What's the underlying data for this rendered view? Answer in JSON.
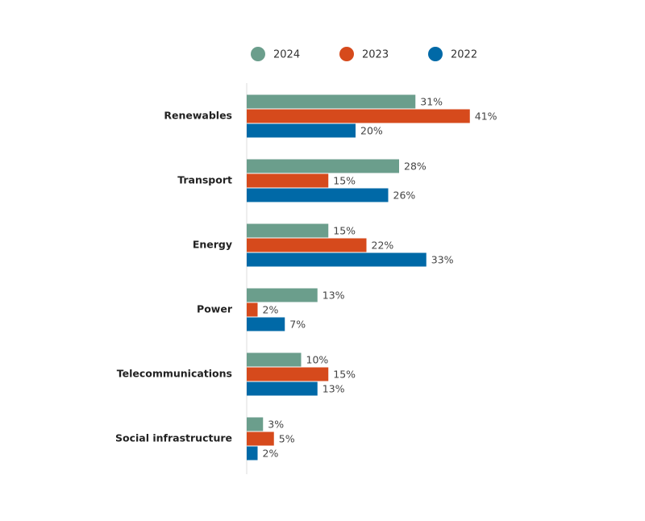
{
  "chart_data": {
    "type": "bar",
    "orientation": "horizontal",
    "categories": [
      "Renewables",
      "Transport",
      "Energy",
      "Power",
      "Telecommunications",
      "Social infrastructure"
    ],
    "series": [
      {
        "name": "2024",
        "color": "#6b9e8c",
        "values": [
          31,
          28,
          15,
          13,
          10,
          3
        ],
        "value_labels": [
          "31%",
          "28%",
          "15%",
          "13%",
          "10%",
          "3%"
        ]
      },
      {
        "name": "2023",
        "color": "#d64a1c",
        "values": [
          41,
          15,
          22,
          2,
          15,
          5
        ],
        "value_labels": [
          "41%",
          "15%",
          "22%",
          "2%",
          "15%",
          "5%"
        ]
      },
      {
        "name": "2022",
        "color": "#0069a7",
        "values": [
          20,
          26,
          33,
          7,
          13,
          2
        ],
        "value_labels": [
          "20%",
          "26%",
          "33%",
          "7%",
          "13%",
          "2%"
        ]
      }
    ],
    "legend": "top"
  }
}
